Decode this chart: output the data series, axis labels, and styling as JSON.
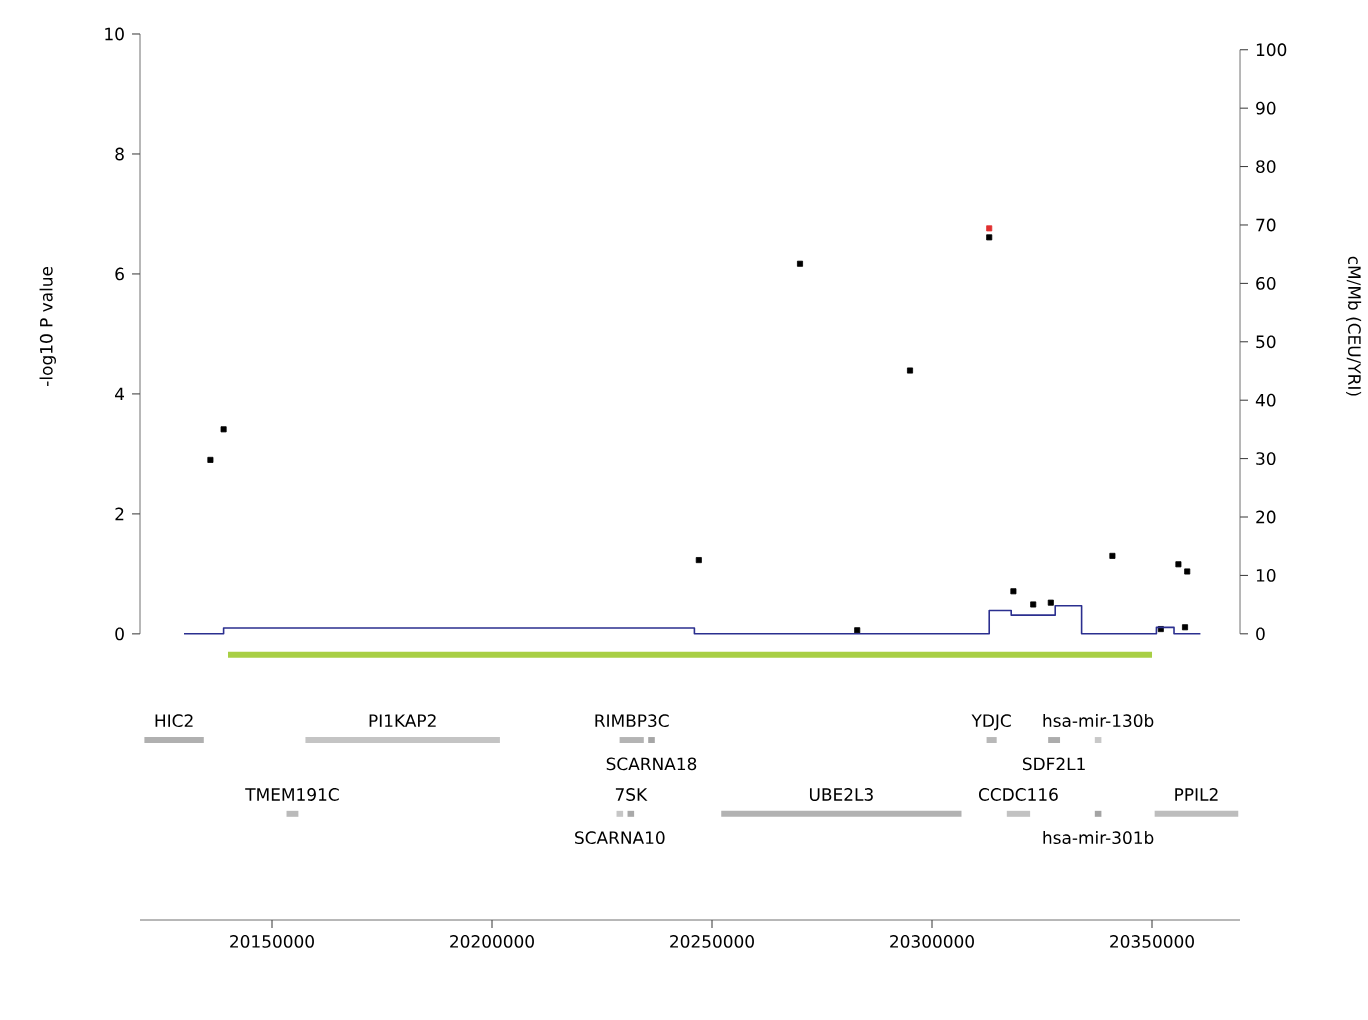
{
  "chart_data": {
    "type": "scatter",
    "xlim": [
      20120000,
      20370000
    ],
    "xticks": [
      20150000,
      20200000,
      20250000,
      20300000,
      20350000
    ],
    "ylim": [
      -4.77,
      10
    ],
    "yticks": [
      0,
      2,
      4,
      6,
      8,
      10
    ],
    "y2lim": [
      -49,
      102.7
    ],
    "y2ticks": [
      0,
      10,
      20,
      30,
      40,
      50,
      60,
      70,
      80,
      90,
      100
    ],
    "ylabel": "-log10 P value",
    "y2label": "cM/Mb (CEU/YRI)",
    "series": [
      {
        "marker": "square",
        "x": [
          20136000,
          20139000,
          20247000,
          20270000,
          20283000,
          20295000,
          20313000,
          20313000,
          20318500,
          20323000,
          20327000,
          20341000,
          20352000,
          20356000,
          20357500,
          20358000
        ],
        "values": [
          2.9,
          3.41,
          1.23,
          6.17,
          0.06,
          4.39,
          6.76,
          6.61,
          0.71,
          0.49,
          0.52,
          1.3,
          0.08,
          1.16,
          0.11,
          1.04
        ],
        "colors": [
          "#000000",
          "#000000",
          "#000000",
          "#000000",
          "#000000",
          "#000000",
          "#e03030",
          "#000000",
          "#000000",
          "#000000",
          "#000000",
          "#000000",
          "#000000",
          "#000000",
          "#000000",
          "#000000"
        ]
      },
      {
        "type": "step",
        "axis": "y2",
        "color": "#2b2f8f",
        "x": [
          20130000,
          20139000,
          20246000,
          20313000,
          20318000,
          20328000,
          20334000,
          20351000,
          20355000,
          20361000
        ],
        "values": [
          0,
          1.0,
          0,
          4.0,
          3.2,
          4.8,
          0,
          1.1,
          0,
          0
        ]
      },
      {
        "type": "line",
        "color": "#a8cf45",
        "x": [
          20140000,
          20350000
        ],
        "values": [
          -0.35,
          -0.35
        ]
      },
      {
        "type": "line",
        "name": "HIC2",
        "color": "#b0b0b0",
        "x": [
          20121000,
          20134500
        ],
        "values": [
          -1.77,
          -1.77
        ]
      },
      {
        "type": "line",
        "name": "PI1KAP2",
        "color": "#c4c4c4",
        "x": [
          20157600,
          20201800
        ],
        "values": [
          -1.77,
          -1.77
        ]
      },
      {
        "type": "line",
        "name": "RIMBP3C",
        "color": "#b4b4b4",
        "x": [
          20229000,
          20234500
        ],
        "values": [
          -1.77,
          -1.77
        ]
      },
      {
        "type": "line",
        "name": "SCARNA18",
        "color": "#a6a6a6",
        "x": [
          20235500,
          20237000
        ],
        "values": [
          -1.77,
          -1.77
        ]
      },
      {
        "type": "line",
        "name": "YDJC",
        "color": "#b8b8b8",
        "x": [
          20312400,
          20314700
        ],
        "values": [
          -1.77,
          -1.77
        ]
      },
      {
        "type": "line",
        "name": "SDF2L1",
        "color": "#acacac",
        "x": [
          20326400,
          20329100
        ],
        "values": [
          -1.77,
          -1.77
        ]
      },
      {
        "type": "line",
        "name": "hsa-mir-130b",
        "color": "#c8c8c8",
        "x": [
          20337000,
          20338500
        ],
        "values": [
          -1.77,
          -1.77
        ]
      },
      {
        "type": "line",
        "name": "TMEM191C",
        "color": "#bababa",
        "x": [
          20153300,
          20156000
        ],
        "values": [
          -3.0,
          -3.0
        ]
      },
      {
        "type": "line",
        "name": "7SK",
        "color": "#a9a9a9",
        "x": [
          20230800,
          20232300
        ],
        "values": [
          -3.0,
          -3.0
        ]
      },
      {
        "type": "line",
        "name": "SCARNA10",
        "color": "#c6c6c6",
        "x": [
          20228300,
          20229800
        ],
        "values": [
          -3.0,
          -3.0
        ]
      },
      {
        "type": "line",
        "name": "UBE2L3",
        "color": "#b2b2b2",
        "x": [
          20252100,
          20306700
        ],
        "values": [
          -3.0,
          -3.0
        ]
      },
      {
        "type": "line",
        "name": "CCDC116",
        "color": "#c2c2c2",
        "x": [
          20317000,
          20322300
        ],
        "values": [
          -3.0,
          -3.0
        ]
      },
      {
        "type": "line",
        "name": "hsa-mir-301b",
        "color": "#a4a4a4",
        "x": [
          20337000,
          20338500
        ],
        "values": [
          -3.0,
          -3.0
        ]
      },
      {
        "type": "line",
        "name": "PPIL2",
        "color": "#bdbdbd",
        "x": [
          20350600,
          20369600
        ],
        "values": [
          -3.0,
          -3.0
        ]
      }
    ]
  }
}
